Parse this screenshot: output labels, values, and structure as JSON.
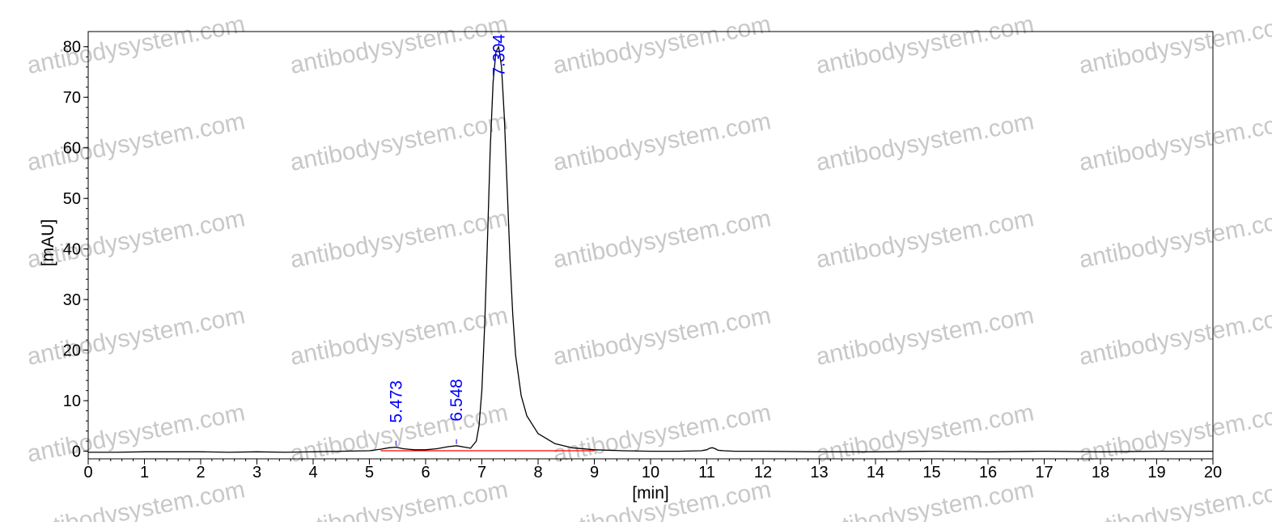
{
  "chart_data": {
    "type": "line",
    "title": "",
    "xlabel": "[min]",
    "ylabel": "[mAU]",
    "xlim": [
      0,
      20
    ],
    "ylim": [
      -1.5,
      83
    ],
    "x_ticks": [
      0,
      1,
      2,
      3,
      4,
      5,
      6,
      7,
      8,
      9,
      10,
      11,
      12,
      13,
      14,
      15,
      16,
      17,
      18,
      19,
      20
    ],
    "y_ticks": [
      0,
      10,
      20,
      30,
      40,
      50,
      60,
      70,
      80
    ],
    "grid": false,
    "legend": "none",
    "colors": {
      "trace": "#000000",
      "baseline": "#ff0000",
      "peak_label": "#0000ff",
      "axes": "#000000",
      "watermark": "#c8c8c8"
    },
    "series": [
      {
        "kind": "trace",
        "x": [
          0,
          0.5,
          1,
          2,
          2.5,
          3,
          3.5,
          4,
          4.5,
          5,
          5.2,
          5.35,
          5.47,
          5.6,
          5.8,
          6.0,
          6.2,
          6.4,
          6.55,
          6.7,
          6.8,
          6.9,
          6.95,
          7.0,
          7.05,
          7.1,
          7.15,
          7.2,
          7.25,
          7.3,
          7.35,
          7.4,
          7.45,
          7.5,
          7.55,
          7.6,
          7.7,
          7.8,
          8.0,
          8.3,
          8.6,
          9.0,
          9.5,
          10.0,
          10.5,
          10.9,
          11.0,
          11.05,
          11.1,
          11.15,
          11.2,
          11.3,
          11.5,
          12.0,
          13.0,
          14.0,
          15.0,
          16.0,
          17.0,
          18.0,
          19.0,
          20.0
        ],
        "y": [
          -0.2,
          -0.2,
          -0.1,
          -0.1,
          -0.2,
          -0.1,
          -0.2,
          -0.1,
          0.0,
          0.1,
          0.4,
          0.7,
          0.8,
          0.5,
          0.3,
          0.3,
          0.5,
          0.9,
          1.1,
          0.8,
          0.6,
          2.0,
          5.0,
          12.0,
          25.0,
          42.0,
          60.0,
          73.0,
          79.0,
          80.0,
          76.0,
          66.0,
          52.0,
          38.0,
          27.0,
          19.0,
          11.0,
          7.0,
          3.5,
          1.5,
          0.7,
          0.3,
          0.1,
          0.0,
          0.0,
          0.1,
          0.3,
          0.6,
          0.7,
          0.5,
          0.2,
          0.1,
          0.0,
          0.0,
          -0.1,
          -0.1,
          0.0,
          -0.1,
          0.0,
          -0.1,
          0.0,
          0.0
        ]
      },
      {
        "kind": "baseline",
        "x": [
          5.2,
          9.0
        ],
        "y": [
          0.1,
          0.1
        ]
      }
    ],
    "peaks": [
      {
        "label": "5.473",
        "x": 5.473,
        "y": 0.8
      },
      {
        "label": "6.548",
        "x": 6.548,
        "y": 1.1
      },
      {
        "label": "7.304",
        "x": 7.304,
        "y": 80.0
      }
    ],
    "watermark": "antibodysystem.com"
  }
}
